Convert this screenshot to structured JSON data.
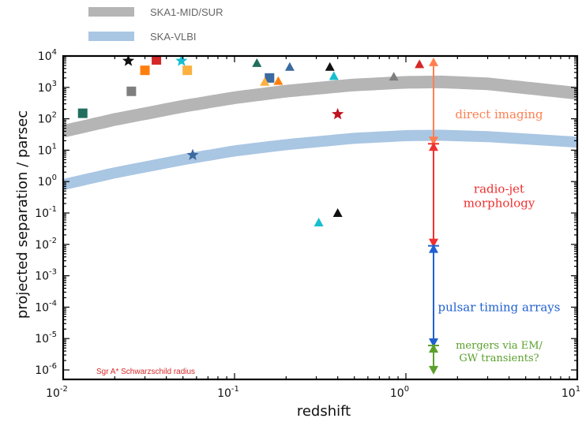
{
  "chart_data": {
    "type": "scatter",
    "xlabel": "redshift",
    "ylabel": "projected separation / parsec",
    "xscale": "log",
    "yscale": "log",
    "xlim": [
      0.01,
      10
    ],
    "ylim": [
      5e-07,
      10000
    ],
    "x_ticks": [
      {
        "base": "10",
        "exp": "-2"
      },
      {
        "base": "10",
        "exp": "-1"
      },
      {
        "base": "10",
        "exp": "0"
      },
      {
        "base": "10",
        "exp": "1"
      }
    ],
    "y_ticks": [
      {
        "base": "10",
        "exp": "4"
      },
      {
        "base": "10",
        "exp": "3"
      },
      {
        "base": "10",
        "exp": "2"
      },
      {
        "base": "10",
        "exp": "1"
      },
      {
        "base": "10",
        "exp": "0"
      },
      {
        "base": "10",
        "exp": "-1"
      },
      {
        "base": "10",
        "exp": "-2"
      },
      {
        "base": "10",
        "exp": "-3"
      },
      {
        "base": "10",
        "exp": "-4"
      },
      {
        "base": "10",
        "exp": "-5"
      },
      {
        "base": "10",
        "exp": "-6"
      }
    ],
    "legend": [
      {
        "label": "SKA1-MID/SUR",
        "color": "#b5b5b5"
      },
      {
        "label": "SKA-VLBI",
        "color": "#a9c6e3"
      }
    ],
    "bands": [
      {
        "name": "SKA1-MID/SUR",
        "color": "#b5b5b5",
        "x": [
          0.01,
          0.02,
          0.05,
          0.1,
          0.2,
          0.5,
          1,
          1.6,
          3,
          10
        ],
        "y": [
          40,
          95,
          250,
          470,
          760,
          1200,
          1450,
          1500,
          1300,
          650
        ]
      },
      {
        "name": "SKA-VLBI",
        "color": "#a9c6e3",
        "x": [
          0.01,
          0.02,
          0.05,
          0.1,
          0.2,
          0.5,
          1,
          1.6,
          3,
          10
        ],
        "y": [
          0.8,
          1.9,
          5,
          9.5,
          15,
          24,
          29,
          30,
          27,
          18
        ]
      }
    ],
    "points": [
      {
        "x": 0.013,
        "y": 150,
        "marker": "square",
        "color": "#1f6e5e"
      },
      {
        "x": 0.025,
        "y": 750,
        "marker": "square",
        "color": "#7f7f7f"
      },
      {
        "x": 0.03,
        "y": 3500,
        "marker": "square",
        "color": "#ff7f0e"
      },
      {
        "x": 0.035,
        "y": 7500,
        "marker": "square",
        "color": "#d62728"
      },
      {
        "x": 0.053,
        "y": 3500,
        "marker": "square",
        "color": "#fbb040"
      },
      {
        "x": 0.16,
        "y": 2000,
        "marker": "square",
        "color": "#3b6aa0"
      },
      {
        "x": 0.024,
        "y": 7000,
        "marker": "star",
        "color": "#111111"
      },
      {
        "x": 0.049,
        "y": 7000,
        "marker": "star",
        "color": "#17becf"
      },
      {
        "x": 0.057,
        "y": 7,
        "marker": "star",
        "color": "#3b6aa0"
      },
      {
        "x": 0.4,
        "y": 140,
        "marker": "star",
        "color": "#c1121f"
      },
      {
        "x": 0.135,
        "y": 6000,
        "marker": "triangle",
        "color": "#1f6e5e"
      },
      {
        "x": 0.15,
        "y": 1500,
        "marker": "triangle",
        "color": "#fbb040"
      },
      {
        "x": 0.18,
        "y": 1600,
        "marker": "triangle",
        "color": "#ff7f0e"
      },
      {
        "x": 0.21,
        "y": 4500,
        "marker": "triangle",
        "color": "#3b6aa0"
      },
      {
        "x": 0.36,
        "y": 4500,
        "marker": "triangle",
        "color": "#111111"
      },
      {
        "x": 0.38,
        "y": 2300,
        "marker": "triangle",
        "color": "#17becf"
      },
      {
        "x": 0.31,
        "y": 0.05,
        "marker": "triangle",
        "color": "#17becf"
      },
      {
        "x": 0.4,
        "y": 0.1,
        "marker": "triangle",
        "color": "#111111"
      },
      {
        "x": 0.85,
        "y": 2200,
        "marker": "triangle",
        "color": "#7f7f7f"
      },
      {
        "x": 1.2,
        "y": 5500,
        "marker": "triangle",
        "color": "#d62728"
      }
    ],
    "arrow_x": 1.45,
    "regions": [
      {
        "from": 8000,
        "to": 16,
        "color": "#ff7f50",
        "label": [
          "direct imaging"
        ],
        "y": 140
      },
      {
        "from": 16,
        "to": 0.009,
        "color": "#f03030",
        "label": [
          "radio-jet",
          "morphology"
        ],
        "y": 0.35
      },
      {
        "from": 0.009,
        "to": 6e-06,
        "color": "#2060d0",
        "label": [
          "pulsar timing arrays"
        ],
        "y": 0.0001
      },
      {
        "from": 6e-06,
        "to": 8e-07,
        "color": "#5aa02c",
        "label": [
          "mergers via EM/",
          "GW transients?"
        ],
        "y": 4e-06
      }
    ],
    "annotation": "Sgr A* Schwarzschild radius"
  }
}
